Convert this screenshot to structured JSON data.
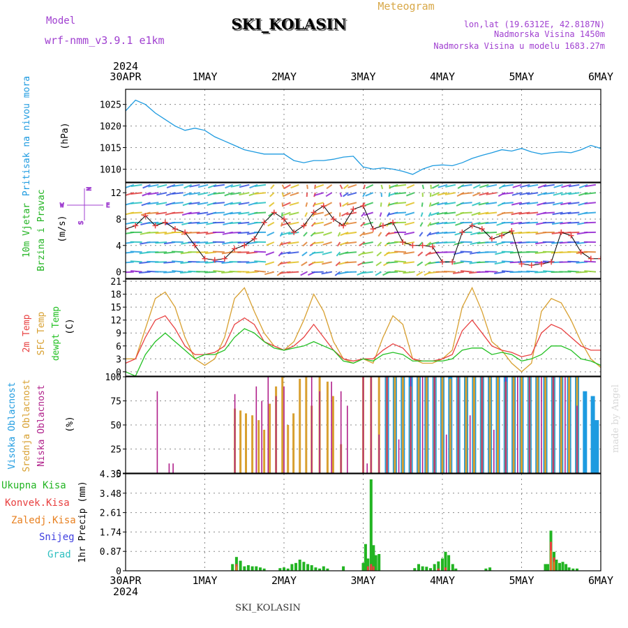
{
  "header": {
    "model_label": "Model",
    "model_name": "wrf-nmm_v3.9.1 e1km",
    "station": "SKI_KOLASIN",
    "meteogram_label": "Meteogram",
    "lonlat": "lon,lat (19.6312E, 42.8187N)",
    "altitude": "Nadmorska Visina 1450m",
    "model_altitude": "Nadmorska Visina u modelu 1683.27m",
    "footer_station": "SKI_KOLASIN",
    "credit": "made by Angel"
  },
  "colors": {
    "pressure": "#1e9be0",
    "wind_label": "#22b422",
    "compass": "#a040d0",
    "temp2m": "#e84040",
    "sfc": "#d8a030",
    "dew": "#22c022",
    "high_cloud": "#1e9be0",
    "mid_cloud": "#d8a030",
    "low_cloud": "#b0208a",
    "total_precip": "#22b422",
    "conv_precip": "#e84040",
    "frz_precip": "#e88020",
    "snow": "#4040e0",
    "hail": "#30c0c0",
    "header_purple": "#a040d0",
    "header_gold": "#d8a848"
  },
  "time_axis": {
    "year": "2024",
    "labels": [
      "30APR",
      "1MAY",
      "2MAY",
      "3MAY",
      "4MAY",
      "5MAY",
      "6MAY"
    ]
  },
  "panels": {
    "pressure": {
      "ylabel": "Pritisak na nivou mora",
      "unit": "(hPa)",
      "ticks": [
        "1025",
        "1020",
        "1015",
        "1010"
      ]
    },
    "wind": {
      "ylabel1": "10m Vjetar",
      "ylabel2": "Brzina i Pravac",
      "unit": "(m/s)",
      "ticks": [
        "12",
        "8",
        "4",
        "0"
      ],
      "compass": {
        "n": "N",
        "s": "S",
        "e": "E",
        "w": "W"
      }
    },
    "temp": {
      "label_2m": "2m Temp",
      "label_sfc": "SFC Temp",
      "label_dew": "dewpt Temp",
      "unit": "(C)",
      "ticks": [
        "21",
        "18",
        "15",
        "12",
        "9",
        "6",
        "3",
        "0"
      ]
    },
    "cloud": {
      "label_high": "Visoka Oblacnost",
      "label_mid": "Srednja Oblacnost",
      "label_low": "Niska Oblacnost",
      "unit": "(%)",
      "ticks": [
        "100",
        "75",
        "50",
        "25",
        "0"
      ]
    },
    "precip": {
      "ylabel": "1hr Precip (mm)",
      "ticks": [
        "4.35",
        "3.48",
        "2.61",
        "1.74",
        "0.87",
        "0"
      ],
      "legend": [
        "Ukupna Kisa",
        "Konvek.Kisa",
        "Zaledj.Kisa",
        "Snijeg",
        "Grad"
      ]
    }
  },
  "chart_data": [
    {
      "type": "line",
      "name": "pressure",
      "x_unit": "hours since 30APR 00UTC",
      "ylim": [
        1007,
        1028.5
      ],
      "x": [
        0,
        3,
        6,
        9,
        12,
        15,
        18,
        21,
        24,
        27,
        30,
        33,
        36,
        39,
        42,
        45,
        48,
        51,
        54,
        57,
        60,
        63,
        66,
        69,
        72,
        75,
        78,
        81,
        84,
        87,
        90,
        93,
        96,
        99,
        102,
        105,
        108,
        111,
        114,
        117,
        120,
        123,
        126,
        129,
        132,
        135,
        138,
        141,
        144
      ],
      "values": [
        1023.5,
        1026,
        1025,
        1023,
        1021.5,
        1020,
        1019,
        1019.5,
        1019,
        1017.5,
        1016.5,
        1015.5,
        1014.5,
        1014,
        1013.5,
        1013.5,
        1013.5,
        1012,
        1011.5,
        1012,
        1012,
        1012.3,
        1012.8,
        1013,
        1010.5,
        1010,
        1010.3,
        1010,
        1009.5,
        1008.8,
        1010,
        1010.8,
        1011,
        1010.8,
        1011.5,
        1012.5,
        1013.2,
        1013.8,
        1014.5,
        1014.2,
        1014.8,
        1014,
        1013.5,
        1013.8,
        1014,
        1013.8,
        1014.5,
        1015.5,
        1014.8
      ]
    },
    {
      "type": "line",
      "name": "wind",
      "x_unit": "hours since 30APR 00UTC",
      "ylim": [
        -1,
        13.5
      ],
      "x": [
        0,
        3,
        6,
        9,
        12,
        15,
        18,
        21,
        24,
        27,
        30,
        33,
        36,
        39,
        42,
        45,
        48,
        51,
        54,
        57,
        60,
        63,
        66,
        69,
        72,
        75,
        78,
        81,
        84,
        87,
        90,
        93,
        96,
        99,
        102,
        105,
        108,
        111,
        114,
        117,
        120,
        123,
        126,
        129,
        132,
        135,
        138,
        141,
        144
      ],
      "values": [
        6.5,
        7,
        8.5,
        7,
        7.5,
        6.5,
        6,
        4,
        2,
        1.8,
        2,
        3.5,
        4,
        5,
        7.5,
        9,
        8,
        6,
        7,
        9,
        10,
        8,
        7,
        9.5,
        10,
        6.5,
        7,
        7.5,
        4.5,
        4,
        4,
        3.8,
        1.5,
        1.5,
        6,
        7,
        6.5,
        5,
        5.5,
        6.2,
        1.2,
        1,
        1.2,
        1.5,
        6,
        5.5,
        3,
        2,
        2
      ]
    },
    {
      "type": "line",
      "name": "temperature",
      "x_unit": "hours since 30APR 00UTC",
      "ylim": [
        -1,
        21.5
      ],
      "x": [
        0,
        3,
        6,
        9,
        12,
        15,
        18,
        21,
        24,
        27,
        30,
        33,
        36,
        39,
        42,
        45,
        48,
        51,
        54,
        57,
        60,
        63,
        66,
        69,
        72,
        75,
        78,
        81,
        84,
        87,
        90,
        93,
        96,
        99,
        102,
        105,
        108,
        111,
        114,
        117,
        120,
        123,
        126,
        129,
        132,
        135,
        138,
        141,
        144
      ],
      "series": [
        {
          "name": "2m Temp",
          "values": [
            2,
            3,
            8,
            12,
            13,
            10,
            6,
            4,
            4,
            4.5,
            6,
            11,
            12.5,
            11,
            7,
            6,
            5,
            6,
            8,
            11,
            8,
            5,
            3,
            2.5,
            3,
            3,
            5,
            6.5,
            5.5,
            3,
            2.5,
            2.5,
            3,
            4,
            9.5,
            12,
            9,
            6,
            5,
            4.5,
            3.5,
            4,
            9,
            11,
            10,
            8,
            6,
            5,
            5
          ]
        },
        {
          "name": "SFC Temp",
          "values": [
            3,
            3,
            10,
            17,
            18.5,
            15,
            8,
            3,
            1.5,
            3,
            8,
            17,
            19.5,
            14,
            9,
            6,
            5,
            7,
            12,
            18,
            14,
            7,
            3,
            2,
            3,
            2,
            8,
            13,
            11,
            3,
            2,
            2,
            3,
            5,
            15,
            19.5,
            14,
            7,
            5,
            2,
            0,
            2,
            14,
            17,
            16,
            12,
            7,
            3,
            1
          ]
        },
        {
          "name": "dewpt Temp",
          "values": [
            0,
            -1,
            4,
            7,
            9,
            7,
            5,
            3,
            4,
            4,
            5,
            8,
            10,
            9,
            7,
            5.5,
            5,
            5.5,
            6,
            7,
            6,
            5,
            2.5,
            2,
            3,
            2.5,
            4,
            4.5,
            4,
            2.5,
            2.5,
            2.5,
            2.5,
            3,
            5,
            5.5,
            5.5,
            4,
            4.5,
            4,
            2.5,
            3,
            4,
            6,
            6,
            5,
            3,
            2.5,
            1.5
          ]
        }
      ]
    },
    {
      "type": "bar",
      "name": "cloudiness",
      "ylim": [
        0,
        100
      ],
      "series": [
        {
          "name": "Visoka Oblacnost",
          "day": [
            3.3,
            3.4,
            3.5,
            3.6,
            3.7,
            3.8,
            3.9,
            4.0,
            4.1,
            4.2,
            4.3,
            4.4,
            4.5,
            4.6,
            4.7,
            4.8,
            4.9,
            5.0,
            5.1,
            5.2,
            5.3,
            5.4,
            5.5,
            5.6,
            5.7,
            5.8,
            5.9,
            5.95
          ],
          "values": [
            100,
            100,
            100,
            100,
            100,
            100,
            100,
            100,
            100,
            100,
            100,
            100,
            100,
            100,
            100,
            100,
            100,
            100,
            100,
            100,
            100,
            100,
            100,
            100,
            100,
            85,
            80,
            55
          ]
        },
        {
          "name": "Srednja Oblacnost",
          "day": [
            1.38,
            1.45,
            1.52,
            1.6,
            1.68,
            1.75,
            1.82,
            1.9,
            1.98,
            2.05,
            2.12,
            2.2,
            2.28,
            2.35,
            2.45,
            2.55,
            2.62,
            2.72,
            3.0,
            3.1,
            3.2,
            3.3,
            3.4,
            3.5,
            3.6,
            3.7,
            3.8,
            3.9,
            4.0,
            4.1,
            4.2,
            4.3,
            4.4,
            4.5,
            4.6,
            4.7,
            4.8,
            4.9,
            5.0,
            5.1,
            5.2,
            5.3,
            5.4,
            5.5,
            5.6,
            5.7
          ],
          "values": [
            67,
            65,
            62,
            60,
            55,
            45,
            72,
            90,
            100,
            50,
            62,
            98,
            100,
            70,
            100,
            95,
            80,
            30,
            100,
            100,
            100,
            100,
            100,
            100,
            90,
            100,
            100,
            100,
            100,
            98,
            100,
            100,
            100,
            100,
            100,
            100,
            95,
            100,
            100,
            100,
            100,
            100,
            100,
            100,
            100,
            100
          ]
        },
        {
          "name": "Niska Oblacnost",
          "day": [
            0.4,
            0.55,
            0.6,
            1.38,
            1.65,
            1.72,
            1.8,
            1.9,
            2.0,
            2.35,
            2.45,
            2.6,
            2.72,
            2.8,
            3.0,
            3.05,
            3.1,
            3.2,
            3.3,
            3.45,
            3.6,
            3.75,
            3.9,
            4.05,
            4.2,
            4.35,
            4.5,
            4.65,
            4.8,
            4.95,
            5.1,
            5.25,
            5.4,
            5.55,
            5.7
          ],
          "values": [
            85,
            10,
            10,
            82,
            90,
            75,
            100,
            80,
            90,
            100,
            85,
            95,
            85,
            70,
            100,
            10,
            100,
            40,
            100,
            35,
            100,
            100,
            100,
            40,
            100,
            60,
            100,
            45,
            100,
            100,
            100,
            100,
            100,
            100,
            70
          ]
        }
      ]
    },
    {
      "type": "bar",
      "name": "precipitation",
      "ylim": [
        0,
        4.35
      ],
      "series": [
        {
          "name": "Ukupna Kisa",
          "day": [
            1.35,
            1.4,
            1.45,
            1.5,
            1.55,
            1.6,
            1.65,
            1.7,
            1.75,
            1.95,
            2.0,
            2.05,
            2.1,
            2.15,
            2.2,
            2.25,
            2.3,
            2.35,
            2.4,
            2.45,
            2.5,
            2.55,
            2.75,
            3.0,
            3.03,
            3.06,
            3.1,
            3.13,
            3.16,
            3.2,
            3.65,
            3.7,
            3.75,
            3.8,
            3.85,
            3.9,
            3.95,
            4.0,
            4.04,
            4.08,
            4.13,
            4.17,
            4.55,
            4.6,
            5.3,
            5.33,
            5.37,
            5.41,
            5.44,
            5.48,
            5.52,
            5.56,
            5.6,
            5.65,
            5.7
          ],
          "values": [
            0.3,
            0.62,
            0.45,
            0.2,
            0.25,
            0.2,
            0.2,
            0.15,
            0.1,
            0.12,
            0.15,
            0.1,
            0.3,
            0.35,
            0.5,
            0.4,
            0.3,
            0.25,
            0.15,
            0.1,
            0.2,
            0.1,
            0.2,
            0.35,
            1.2,
            0.55,
            4.1,
            1.15,
            0.7,
            0.75,
            0.12,
            0.3,
            0.2,
            0.18,
            0.12,
            0.3,
            0.42,
            0.55,
            0.85,
            0.7,
            0.3,
            0.1,
            0.1,
            0.15,
            0.3,
            0.3,
            1.8,
            0.85,
            0.5,
            0.35,
            0.4,
            0.3,
            0.15,
            0.1,
            0.1
          ]
        },
        {
          "name": "Konvek.Kisa",
          "day": [
            1.4,
            3.06,
            3.1,
            3.13,
            3.95,
            4.04,
            5.37,
            5.41
          ],
          "values": [
            0.3,
            0.2,
            0.3,
            0.2,
            0.1,
            0.15,
            1.3,
            0.6
          ]
        },
        {
          "name": "Zaledj.Kisa",
          "day": [
            1.4,
            5.37,
            5.41
          ],
          "values": [
            0.2,
            0.9,
            0.4
          ]
        }
      ]
    }
  ]
}
